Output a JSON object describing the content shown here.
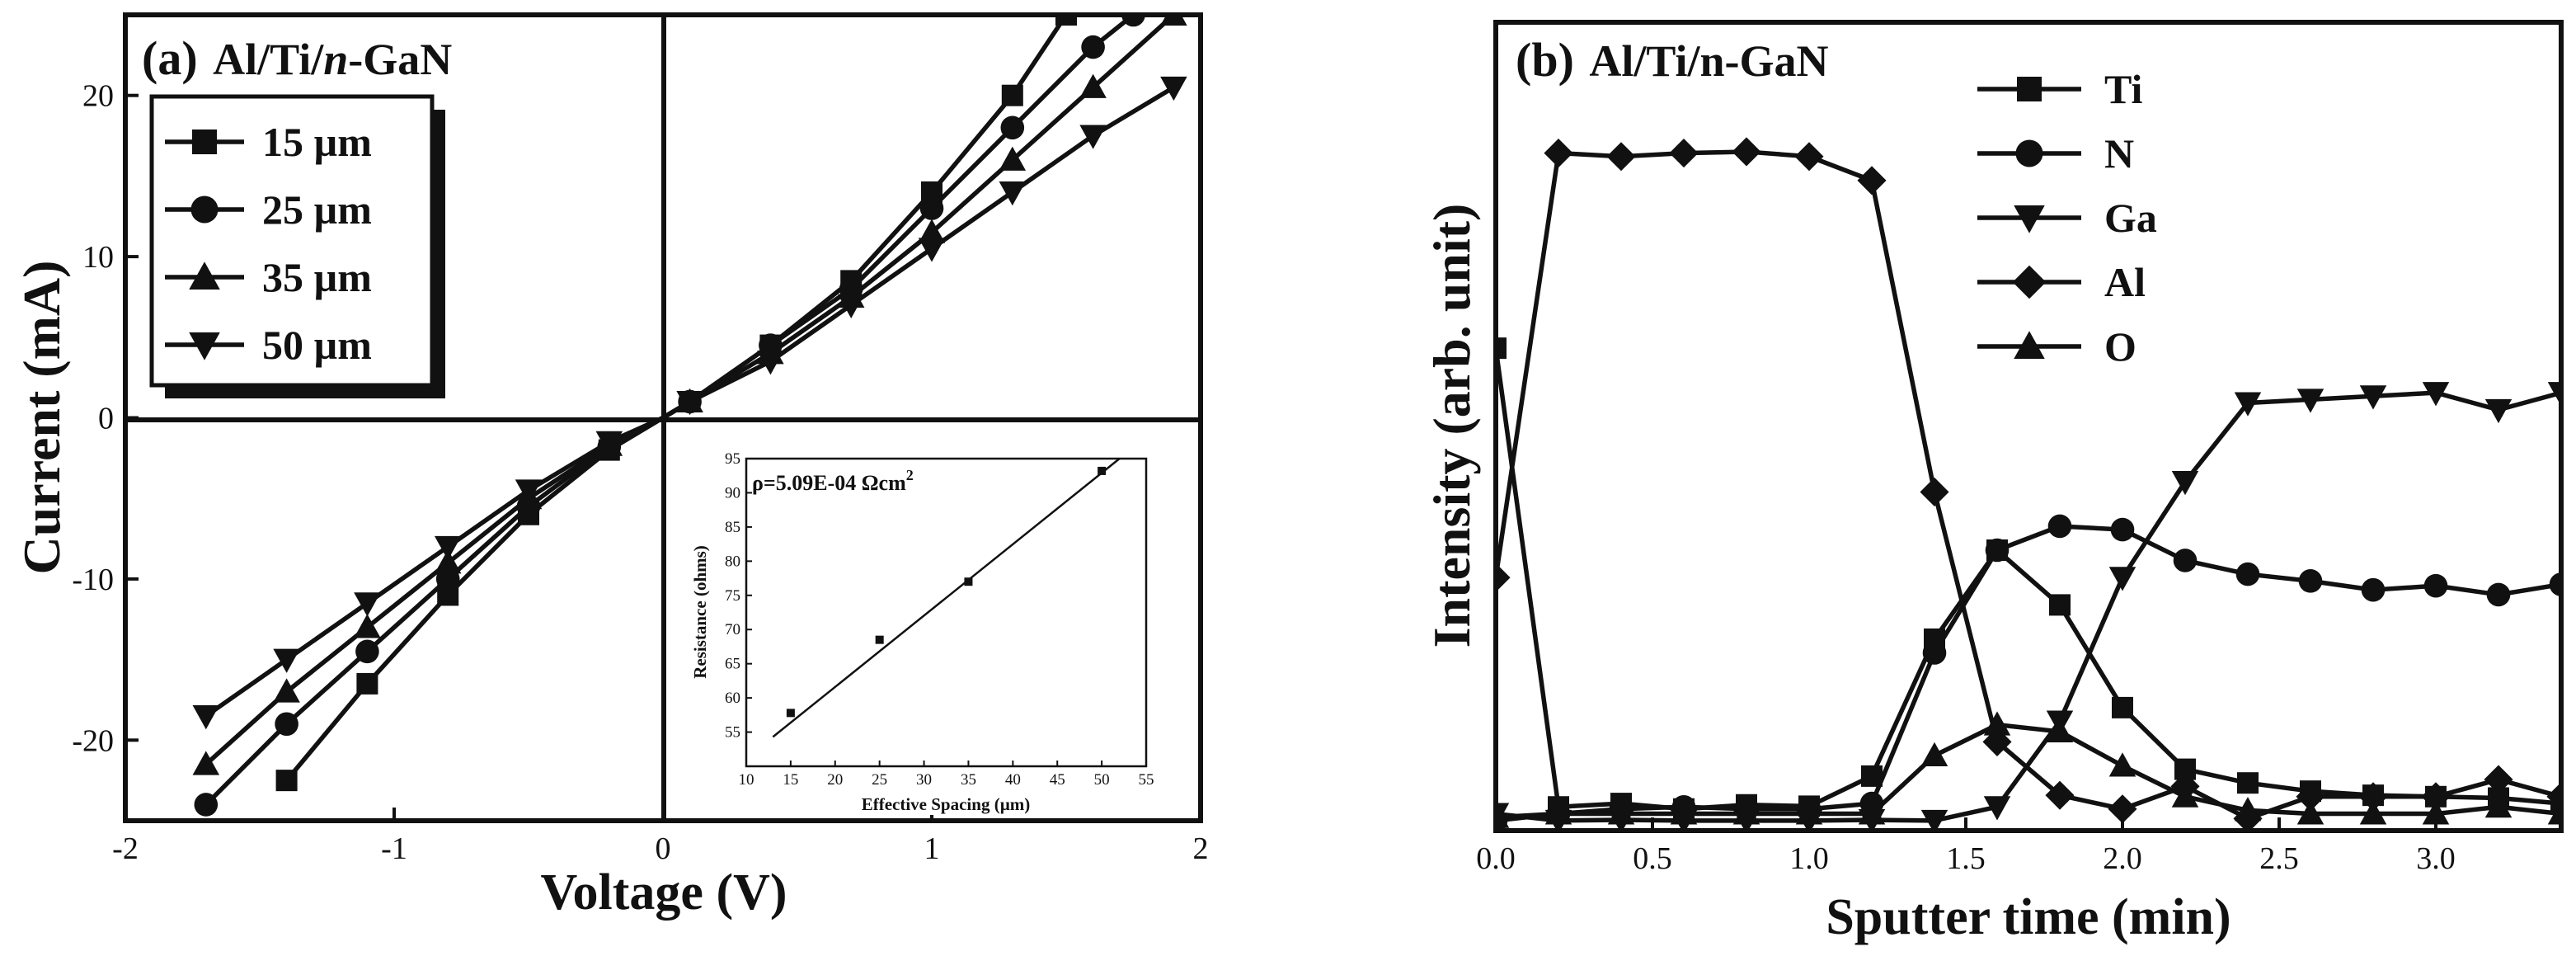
{
  "chart_data": [
    {
      "type": "line",
      "panel": "a",
      "title_prefix": "(a)",
      "title_main": "Al/Ti/",
      "title_italic": "n",
      "title_suffix": "-GaN",
      "xlabel": "Voltage (V)",
      "ylabel": "Current (mA)",
      "xlim": [
        -2,
        2
      ],
      "ylim": [
        -25,
        25
      ],
      "xticks": [
        "-2",
        "-1",
        "0",
        "1",
        "2"
      ],
      "yticks": [
        "-20",
        "-10",
        "0",
        "10",
        "20"
      ],
      "legend_location": "top-left",
      "series": [
        {
          "name": "15 µm",
          "marker": "square",
          "x": [
            -1.4,
            -1.1,
            -0.8,
            -0.5,
            -0.2,
            0,
            0.1,
            0.4,
            0.7,
            1.0,
            1.3,
            1.5
          ],
          "y": [
            -22.5,
            -16.5,
            -11,
            -6,
            -2,
            0,
            1,
            4.5,
            8.5,
            14,
            20,
            25
          ]
        },
        {
          "name": "25 µm",
          "marker": "circle",
          "x": [
            -1.7,
            -1.4,
            -1.1,
            -0.8,
            -0.5,
            -0.2,
            0,
            0.1,
            0.4,
            0.7,
            1.0,
            1.3,
            1.6,
            1.75
          ],
          "y": [
            -24,
            -19,
            -14.5,
            -10,
            -5.5,
            -1.8,
            0,
            1,
            4.5,
            8,
            13,
            18,
            23,
            25
          ]
        },
        {
          "name": "35 µm",
          "marker": "triangle-up",
          "x": [
            -1.7,
            -1.4,
            -1.1,
            -0.8,
            -0.5,
            -0.2,
            0,
            0.1,
            0.4,
            0.7,
            1.0,
            1.3,
            1.6,
            1.9
          ],
          "y": [
            -21.5,
            -17,
            -13,
            -9,
            -5,
            -1.7,
            0,
            1,
            4,
            7.5,
            11.5,
            16,
            20.5,
            25
          ]
        },
        {
          "name": "50 µm",
          "marker": "triangle-down",
          "x": [
            -1.7,
            -1.4,
            -1.1,
            -0.8,
            -0.5,
            -0.2,
            0,
            0.1,
            0.4,
            0.7,
            1.0,
            1.3,
            1.6,
            1.9
          ],
          "y": [
            -18.5,
            -15,
            -11.5,
            -8,
            -4.5,
            -1.5,
            0,
            1,
            3.5,
            7,
            10.5,
            14,
            17.5,
            20.5
          ]
        }
      ],
      "inset": {
        "type": "scatter",
        "annotation": "ρ=5.09E-04 Ωcm",
        "annotation_sup": "2",
        "xlabel": "Effective Spacing (µm)",
        "ylabel": "Resistance (ohms)",
        "xlim": [
          10,
          55
        ],
        "ylim": [
          50,
          95
        ],
        "xticks": [
          "10",
          "15",
          "20",
          "25",
          "30",
          "35",
          "40",
          "45",
          "50",
          "55"
        ],
        "yticks": [
          "55",
          "60",
          "65",
          "70",
          "75",
          "80",
          "85",
          "90",
          "95"
        ],
        "x": [
          15,
          25,
          35,
          50
        ],
        "y": [
          57.8,
          68.5,
          77,
          93.2
        ],
        "fit_x": [
          13,
          52
        ],
        "fit_y": [
          54.3,
          95
        ]
      }
    },
    {
      "type": "line",
      "panel": "b",
      "title_prefix": "(b)",
      "title_main": "Al/Ti/n-GaN",
      "xlabel": "Sputter time (min)",
      "ylabel": "Intensity (arb. unit)",
      "xlim": [
        0,
        3.4
      ],
      "ylim": [
        0,
        100
      ],
      "xticks": [
        "0.0",
        "0.5",
        "1.0",
        "1.5",
        "2.0",
        "2.5",
        "3.0"
      ],
      "legend_location": "top-center",
      "series": [
        {
          "name": "Ti",
          "marker": "square",
          "x": [
            0,
            0.2,
            0.4,
            0.6,
            0.8,
            1.0,
            1.2,
            1.4,
            1.6,
            1.8,
            2.0,
            2.2,
            2.4,
            2.6,
            2.8,
            3.0,
            3.2,
            3.4
          ],
          "y": [
            69.5,
            2.5,
            3.0,
            2.2,
            2.8,
            2.6,
            7.0,
            27,
            40,
            32,
            17,
            8.0,
            6.0,
            4.8,
            4.2,
            4.0,
            3.8,
            3.0
          ]
        },
        {
          "name": "N",
          "marker": "circle",
          "x": [
            0,
            0.2,
            0.4,
            0.6,
            0.8,
            1.0,
            1.2,
            1.4,
            1.6,
            1.8,
            2.0,
            2.2,
            2.4,
            2.6,
            2.8,
            3.0,
            3.2,
            3.4
          ],
          "y": [
            0.5,
            1.5,
            2.2,
            2.5,
            2.2,
            2.2,
            3.0,
            25,
            40,
            43.5,
            43,
            38.5,
            36.5,
            35.5,
            34.2,
            34.8,
            33.5,
            35
          ]
        },
        {
          "name": "Ga",
          "marker": "triangle-down",
          "x": [
            0,
            0.2,
            0.4,
            0.6,
            0.8,
            1.0,
            1.2,
            1.4,
            1.6,
            1.8,
            2.0,
            2.2,
            2.4,
            2.6,
            2.8,
            3.0,
            3.2,
            3.4
          ],
          "y": [
            1.5,
            0.5,
            0.6,
            0.5,
            0.5,
            0.5,
            0.6,
            0.5,
            2.5,
            15,
            36,
            50,
            61.5,
            62,
            62.5,
            63,
            60.5,
            63
          ]
        },
        {
          "name": "Al",
          "marker": "diamond",
          "x": [
            0,
            0.2,
            0.4,
            0.6,
            0.8,
            1.0,
            1.2,
            1.4,
            1.6,
            1.8,
            2.0,
            2.2,
            2.4,
            2.6,
            2.8,
            3.0,
            3.2,
            3.4
          ],
          "y": [
            36,
            98,
            97.5,
            98,
            98.2,
            97.5,
            94,
            48.5,
            12,
            4.2,
            2.2,
            5.5,
            0.8,
            4.0,
            4.0,
            4.0,
            6.5,
            4.0
          ]
        },
        {
          "name": "O",
          "marker": "triangle-up",
          "x": [
            0,
            0.2,
            0.4,
            0.6,
            0.8,
            1.0,
            1.2,
            1.4,
            1.6,
            1.8,
            2.0,
            2.2,
            2.4,
            2.6,
            2.8,
            3.0,
            3.2,
            3.4
          ],
          "y": [
            1.0,
            1.5,
            1.5,
            1.5,
            1.5,
            1.5,
            1.5,
            10,
            14.5,
            13.5,
            8.5,
            4.0,
            2.0,
            1.5,
            1.5,
            1.5,
            2.5,
            1.5
          ]
        }
      ]
    }
  ]
}
